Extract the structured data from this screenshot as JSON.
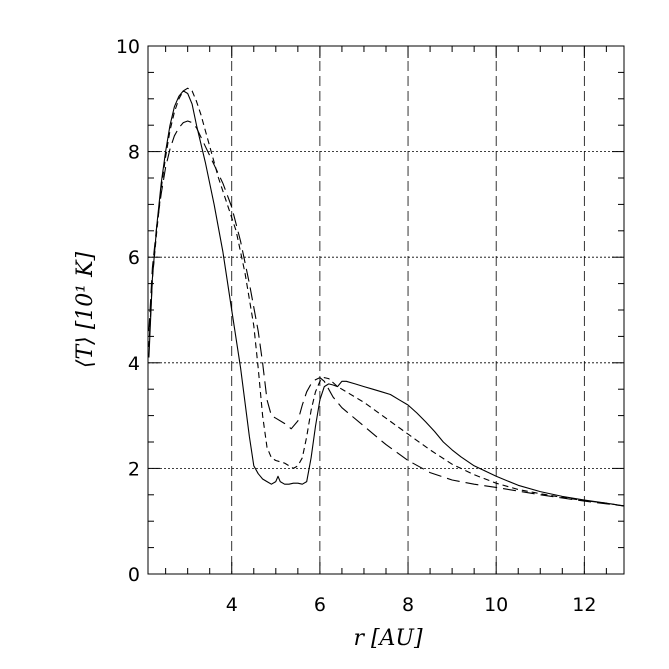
{
  "chart_data": {
    "type": "line",
    "title": "",
    "xlabel": "r   [AU]",
    "ylabel": "⟨T⟩   [10¹ K]",
    "xlim": [
      2.1,
      12.9
    ],
    "ylim": [
      0,
      10
    ],
    "x_ticks": [
      4,
      6,
      8,
      10,
      12
    ],
    "y_ticks": [
      0,
      2,
      4,
      6,
      8,
      10
    ],
    "x_tick_labels": [
      "4",
      "6",
      "8",
      "10",
      "12"
    ],
    "y_tick_labels": [
      "0",
      "2",
      "4",
      "6",
      "8",
      "10"
    ],
    "x_minor_step": 0.5,
    "y_minor_step": 0.5,
    "grid": {
      "x": true,
      "y": true,
      "x_style": "long-dash",
      "y_style": "dotted"
    },
    "legend": "none",
    "series": [
      {
        "style": "solid",
        "x": [
          2.12,
          2.2,
          2.3,
          2.4,
          2.5,
          2.6,
          2.7,
          2.8,
          2.9,
          3.0,
          3.1,
          3.2,
          3.4,
          3.6,
          3.8,
          4.0,
          4.2,
          4.4,
          4.5,
          4.6,
          4.65,
          4.7,
          4.8,
          4.9,
          5.0,
          5.05,
          5.1,
          5.2,
          5.3,
          5.4,
          5.5,
          5.6,
          5.7,
          5.8,
          5.9,
          6.0,
          6.1,
          6.2,
          6.3,
          6.4,
          6.5,
          6.6,
          6.8,
          7.0,
          7.2,
          7.4,
          7.6,
          7.8,
          8.0,
          8.2,
          8.4,
          8.6,
          8.8,
          9.0,
          9.2,
          9.5,
          10.0,
          10.5,
          11.0,
          11.5,
          12.0,
          12.5,
          12.9
        ],
        "y": [
          4.1,
          5.6,
          6.6,
          7.4,
          8.0,
          8.5,
          8.85,
          9.05,
          9.15,
          9.1,
          8.9,
          8.5,
          7.8,
          7.0,
          6.1,
          5.0,
          3.9,
          2.6,
          2.05,
          1.9,
          1.85,
          1.8,
          1.75,
          1.7,
          1.75,
          1.85,
          1.75,
          1.7,
          1.7,
          1.72,
          1.72,
          1.7,
          1.75,
          2.2,
          2.8,
          3.3,
          3.55,
          3.6,
          3.58,
          3.55,
          3.65,
          3.65,
          3.6,
          3.55,
          3.5,
          3.45,
          3.4,
          3.3,
          3.2,
          3.05,
          2.88,
          2.7,
          2.5,
          2.35,
          2.22,
          2.05,
          1.85,
          1.68,
          1.56,
          1.47,
          1.4,
          1.34,
          1.29
        ]
      },
      {
        "style": "short-dash",
        "x": [
          2.12,
          2.2,
          2.3,
          2.4,
          2.5,
          2.6,
          2.7,
          2.8,
          2.9,
          3.0,
          3.1,
          3.2,
          3.3,
          3.5,
          3.7,
          3.9,
          4.1,
          4.3,
          4.5,
          4.6,
          4.7,
          4.8,
          4.9,
          5.0,
          5.2,
          5.4,
          5.5,
          5.6,
          5.7,
          5.8,
          5.9,
          6.0,
          6.1,
          6.2,
          6.4,
          6.6,
          6.8,
          7.0,
          7.5,
          8.0,
          8.5,
          9.0,
          9.5,
          10.0,
          10.5,
          11.0,
          11.5,
          12.0,
          12.5,
          12.9
        ],
        "y": [
          4.3,
          5.6,
          6.5,
          7.3,
          7.9,
          8.4,
          8.75,
          9.0,
          9.15,
          9.2,
          9.15,
          8.95,
          8.7,
          8.1,
          7.5,
          7.0,
          6.5,
          5.7,
          4.7,
          3.9,
          3.0,
          2.4,
          2.2,
          2.15,
          2.1,
          2.0,
          2.05,
          2.2,
          2.6,
          3.1,
          3.45,
          3.65,
          3.72,
          3.7,
          3.55,
          3.45,
          3.35,
          3.25,
          2.95,
          2.65,
          2.35,
          2.08,
          1.88,
          1.72,
          1.6,
          1.52,
          1.45,
          1.39,
          1.34,
          1.29
        ]
      },
      {
        "style": "long-dash",
        "x": [
          2.12,
          2.2,
          2.3,
          2.4,
          2.5,
          2.6,
          2.7,
          2.8,
          2.9,
          3.0,
          3.1,
          3.2,
          3.4,
          3.6,
          3.8,
          4.0,
          4.2,
          4.4,
          4.6,
          4.7,
          4.8,
          4.9,
          5.0,
          5.2,
          5.35,
          5.5,
          5.6,
          5.7,
          5.8,
          5.9,
          6.0,
          6.1,
          6.2,
          6.3,
          6.5,
          7.0,
          7.5,
          8.0,
          8.5,
          9.0,
          9.5,
          10.0,
          10.5,
          11.0,
          11.5,
          12.0,
          12.5,
          12.9
        ],
        "y": [
          4.6,
          5.8,
          6.6,
          7.2,
          7.7,
          8.05,
          8.3,
          8.45,
          8.55,
          8.58,
          8.55,
          8.45,
          8.1,
          7.75,
          7.4,
          6.95,
          6.3,
          5.5,
          4.6,
          4.0,
          3.3,
          3.0,
          2.95,
          2.85,
          2.75,
          2.9,
          3.2,
          3.45,
          3.6,
          3.68,
          3.72,
          3.65,
          3.5,
          3.35,
          3.15,
          2.8,
          2.45,
          2.15,
          1.92,
          1.78,
          1.7,
          1.64,
          1.57,
          1.5,
          1.44,
          1.38,
          1.33,
          1.29
        ]
      }
    ]
  }
}
